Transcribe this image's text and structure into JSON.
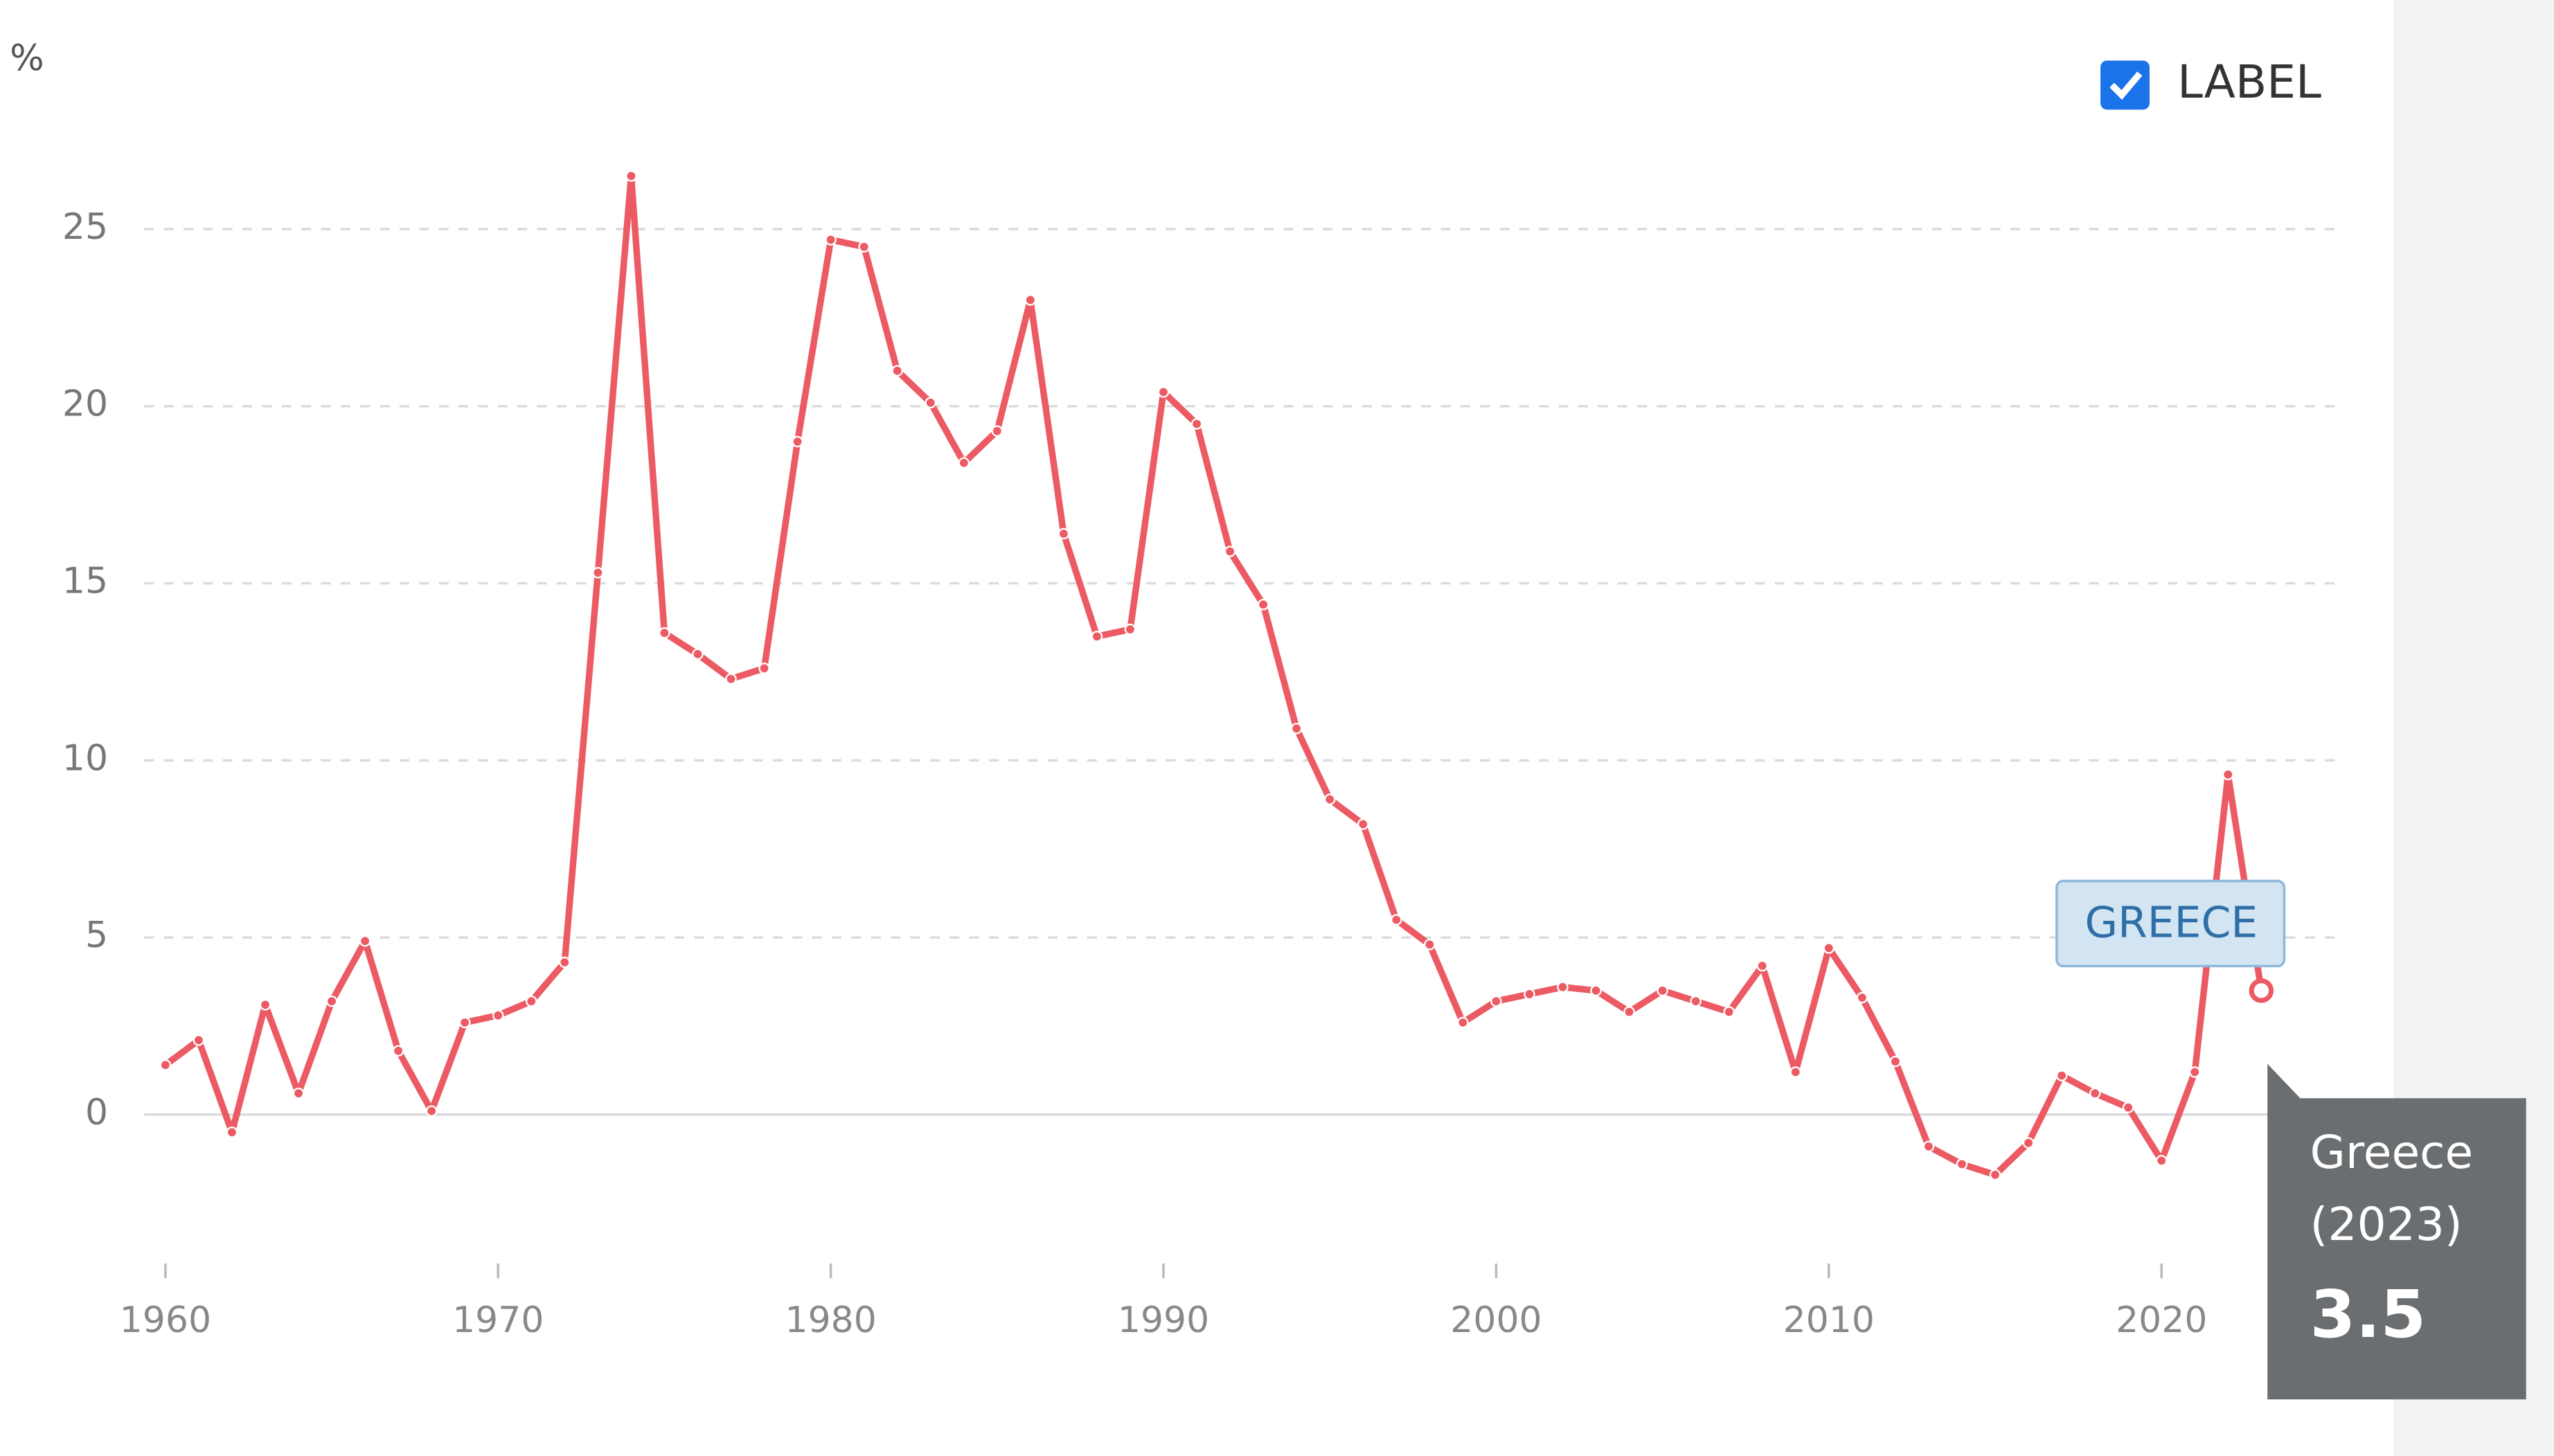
{
  "chart_data": {
    "type": "line",
    "y_unit": "%",
    "toggle_label": "LABEL",
    "x": [
      1960,
      1961,
      1962,
      1963,
      1964,
      1965,
      1966,
      1967,
      1968,
      1969,
      1970,
      1971,
      1972,
      1973,
      1974,
      1975,
      1976,
      1977,
      1978,
      1979,
      1980,
      1981,
      1982,
      1983,
      1984,
      1985,
      1986,
      1987,
      1988,
      1989,
      1990,
      1991,
      1992,
      1993,
      1994,
      1995,
      1996,
      1997,
      1998,
      1999,
      2000,
      2001,
      2002,
      2003,
      2004,
      2005,
      2006,
      2007,
      2008,
      2009,
      2010,
      2011,
      2012,
      2013,
      2014,
      2015,
      2016,
      2017,
      2018,
      2019,
      2020,
      2021,
      2022,
      2023
    ],
    "series": [
      {
        "name": "Greece",
        "color": "#ec5a64",
        "values": [
          1.4,
          2.1,
          -0.5,
          3.1,
          0.6,
          3.2,
          4.9,
          1.8,
          0.1,
          2.6,
          2.8,
          3.2,
          4.3,
          15.3,
          26.5,
          13.6,
          13.0,
          12.3,
          12.6,
          19.0,
          24.7,
          24.5,
          21.0,
          20.1,
          18.4,
          19.3,
          23.0,
          16.4,
          13.5,
          13.7,
          20.4,
          19.5,
          15.9,
          14.4,
          10.9,
          8.9,
          8.2,
          5.5,
          4.8,
          2.6,
          3.2,
          3.4,
          3.6,
          3.5,
          2.9,
          3.5,
          3.2,
          2.9,
          4.2,
          1.2,
          4.7,
          3.3,
          1.5,
          -0.9,
          -1.4,
          -1.7,
          -0.8,
          1.1,
          0.6,
          0.2,
          -1.3,
          1.2,
          9.6,
          3.5
        ]
      }
    ],
    "series_label": "GREECE",
    "tooltip": {
      "name": "Greece",
      "period": "(2023)"
    },
    "xlim": [
      1959.36,
      2025.3
    ],
    "ylim": [
      -4.2,
      28
    ],
    "xticks": [
      1960,
      1970,
      1980,
      1990,
      2000,
      2010,
      2020
    ],
    "yticks": [
      0,
      5,
      10,
      15,
      20,
      25
    ],
    "grid": true
  }
}
